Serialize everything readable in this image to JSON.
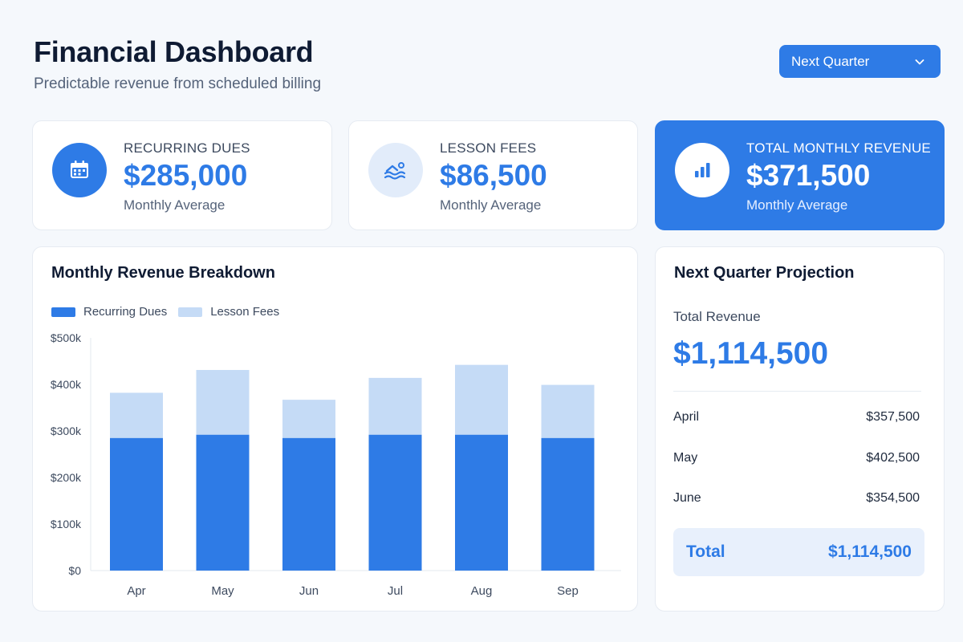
{
  "header": {
    "title": "Financial Dashboard",
    "subtitle": "Predictable revenue from scheduled billing"
  },
  "period_select": {
    "value": "Next Quarter"
  },
  "kpis": [
    {
      "label": "RECURRING DUES",
      "value": "$285,000",
      "sub": "Monthly Average",
      "icon": "calendar-icon"
    },
    {
      "label": "LESSON FEES",
      "value": "$86,500",
      "sub": "Monthly Average",
      "icon": "swimmer-icon"
    },
    {
      "label": "TOTAL MONTHLY REVENUE",
      "value": "$371,500",
      "sub": "Monthly Average",
      "icon": "bar-chart-icon"
    }
  ],
  "colors": {
    "accent": "#2e7be6",
    "accent_light": "#c5dbf6"
  },
  "chart_data": {
    "type": "bar",
    "stacked": true,
    "title": "Monthly Revenue Breakdown",
    "categories": [
      "Apr",
      "May",
      "Jun",
      "Jul",
      "Aug",
      "Sep"
    ],
    "series": [
      {
        "name": "Recurring Dues",
        "values": [
          285000,
          292000,
          285000,
          292000,
          292000,
          285000
        ]
      },
      {
        "name": "Lesson Fees",
        "values": [
          97000,
          139000,
          82000,
          122000,
          150000,
          114000
        ]
      }
    ],
    "yticks": [
      "$0",
      "$100k",
      "$200k",
      "$300k",
      "$400k",
      "$500k"
    ],
    "ylim": [
      0,
      500000
    ],
    "legend": "top-left",
    "grid": false
  },
  "projection": {
    "title": "Next Quarter Projection",
    "label": "Total Revenue",
    "value": "$1,114,500",
    "rows": [
      {
        "month": "April",
        "amount": "$357,500"
      },
      {
        "month": "May",
        "amount": "$402,500"
      },
      {
        "month": "June",
        "amount": "$354,500"
      }
    ],
    "total_label": "Total",
    "total_value": "$1,114,500"
  }
}
